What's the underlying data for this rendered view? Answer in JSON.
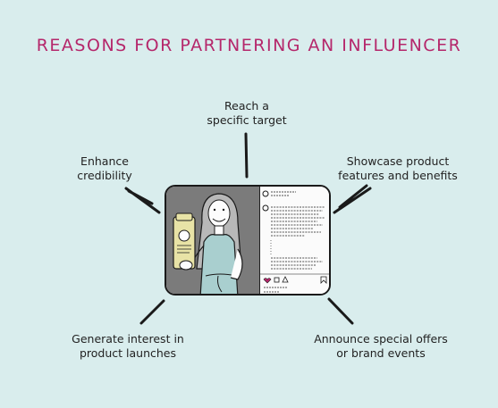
{
  "title": "REASONS FOR PARTNERING AN INFLUENCER",
  "reasons": {
    "top": [
      "Reach a",
      "specific target"
    ],
    "left": [
      "Enhance",
      "credibility"
    ],
    "right": [
      "Showcase product",
      "features and benefits"
    ],
    "bottom_left": [
      "Generate interest in",
      "product launches"
    ],
    "bottom_right": [
      "Announce special offers",
      "or brand events"
    ]
  },
  "colors": {
    "background": "#d9eded",
    "title": "#b5276b",
    "ink": "#1a1a1a",
    "product": "#e8e3a6",
    "top": "#a9cfcf"
  }
}
